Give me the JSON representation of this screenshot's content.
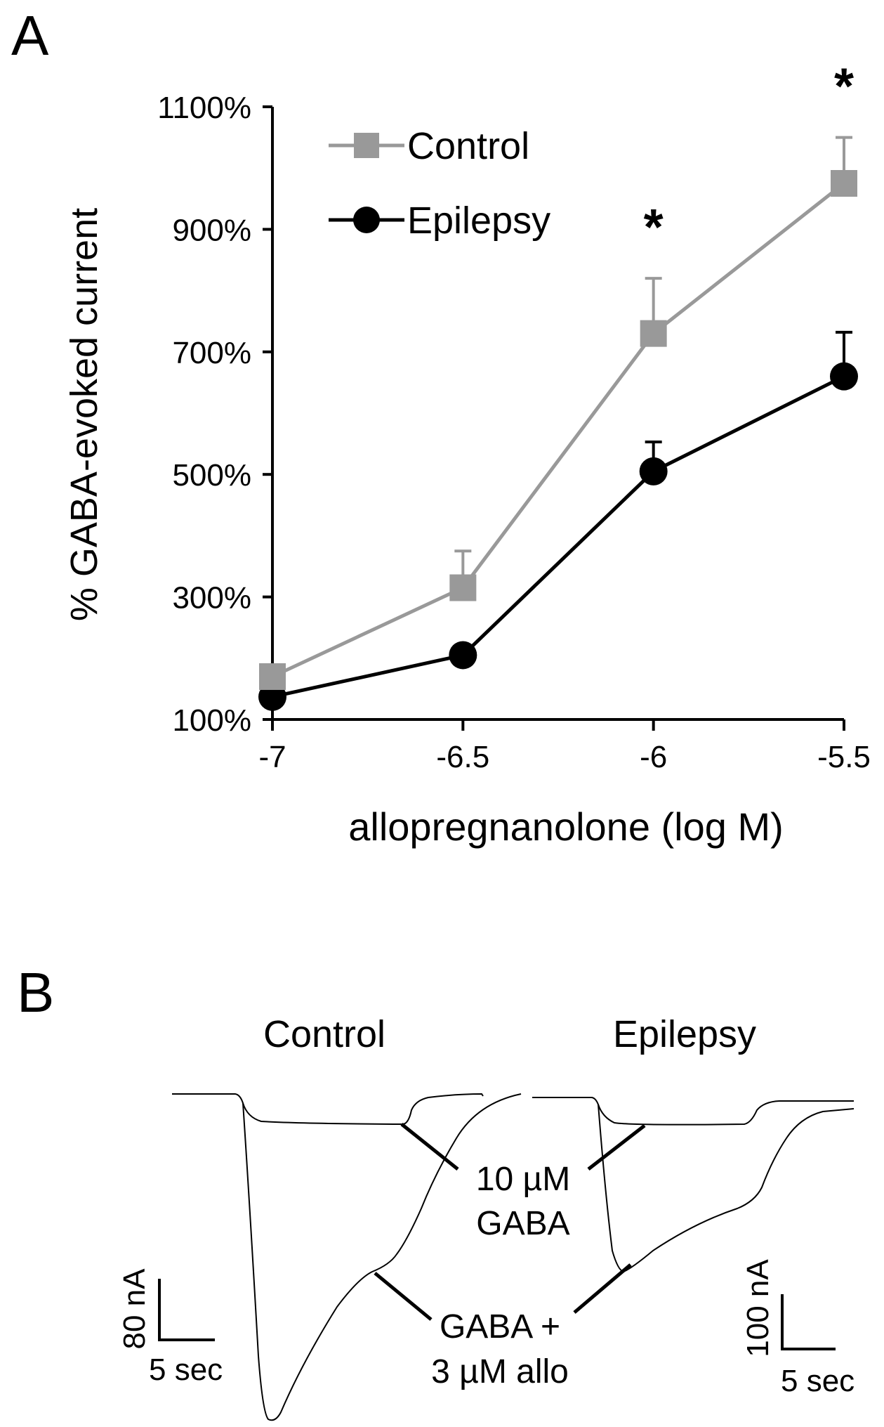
{
  "panel_a": {
    "label": "A"
  },
  "panel_b": {
    "label": "B",
    "control_title": "Control",
    "epilepsy_title": "Epilepsy",
    "annotation_gaba_line1": "10 µM",
    "annotation_gaba_line2": "GABA",
    "annotation_allo_line1": "GABA +",
    "annotation_allo_line2": "3 µM allo",
    "scale_control_y": "80 nA",
    "scale_control_x": "5 sec",
    "scale_epilepsy_y": "100 nA",
    "scale_epilepsy_x": "5 sec"
  },
  "colors": {
    "control": "#999999",
    "epilepsy": "#000000"
  },
  "chart_data": {
    "type": "line",
    "xlabel": "allopregnanolone (log M)",
    "ylabel": "% GABA-evoked current",
    "x": [
      -7,
      -6.5,
      -6,
      -5.5
    ],
    "xticks": [
      "-7",
      "-6.5",
      "-6",
      "-5.5"
    ],
    "yticks": [
      "100%",
      "300%",
      "500%",
      "700%",
      "900%",
      "1100%"
    ],
    "ylim": [
      100,
      1100
    ],
    "xlim": [
      -7,
      -5.5
    ],
    "grid": false,
    "legend_position": "top-left",
    "series": [
      {
        "name": "Control",
        "marker": "square",
        "values": [
          170,
          315,
          730,
          975
        ],
        "error": [
          0,
          60,
          90,
          75
        ]
      },
      {
        "name": "Epilepsy",
        "marker": "circle",
        "values": [
          137,
          205,
          505,
          660
        ],
        "error": [
          0,
          0,
          48,
          72
        ]
      }
    ],
    "significance": [
      {
        "x": -6,
        "label": "*"
      },
      {
        "x": -5.5,
        "label": "*"
      }
    ]
  }
}
